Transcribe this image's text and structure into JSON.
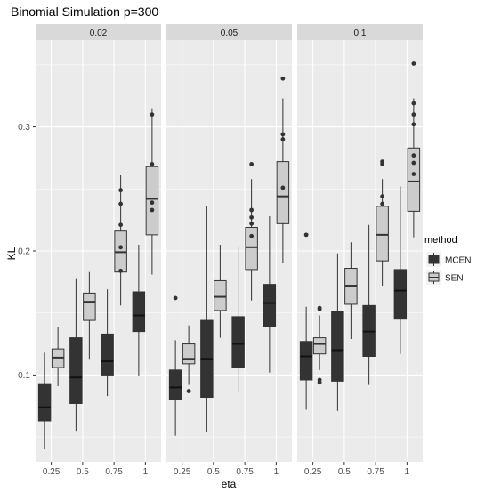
{
  "chart_data": {
    "type": "boxplot",
    "title": "Binomial Simulation p=300",
    "xlabel": "eta",
    "ylabel": "KL",
    "categories": [
      "0.25",
      "0.5",
      "0.75",
      "1"
    ],
    "yticks": [
      {
        "value": 0.1,
        "label": "0.1"
      },
      {
        "value": 0.2,
        "label": "0.2"
      },
      {
        "value": 0.3,
        "label": "0.3"
      }
    ],
    "ylim": [
      0.03,
      0.37
    ],
    "grid": true,
    "legend": {
      "title": "method",
      "position": "right",
      "entries": [
        {
          "label": "MCEN",
          "color": "#333333"
        },
        {
          "label": "SEN",
          "color": "#cccccc"
        }
      ]
    },
    "colors": {
      "panel_bg": "#ebebeb",
      "strip_bg": "#d9d9d9",
      "grid_major": "#ffffff",
      "outline": "#333333",
      "MCEN_fill": "#333333",
      "SEN_fill": "#cccccc"
    },
    "facets": [
      {
        "label": "0.02",
        "series": [
          {
            "name": "MCEN",
            "boxes": [
              {
                "lo": 0.04,
                "q1": 0.063,
                "med": 0.074,
                "q3": 0.093,
                "hi": 0.118,
                "outliers": []
              },
              {
                "lo": 0.055,
                "q1": 0.077,
                "med": 0.098,
                "q3": 0.13,
                "hi": 0.178,
                "outliers": []
              },
              {
                "lo": 0.083,
                "q1": 0.1,
                "med": 0.111,
                "q3": 0.133,
                "hi": 0.169,
                "outliers": []
              },
              {
                "lo": 0.099,
                "q1": 0.135,
                "med": 0.148,
                "q3": 0.167,
                "hi": 0.205,
                "outliers": []
              }
            ]
          },
          {
            "name": "SEN",
            "boxes": [
              {
                "lo": 0.091,
                "q1": 0.106,
                "med": 0.114,
                "q3": 0.121,
                "hi": 0.139,
                "outliers": []
              },
              {
                "lo": 0.113,
                "q1": 0.144,
                "med": 0.159,
                "q3": 0.166,
                "hi": 0.183,
                "outliers": []
              },
              {
                "lo": 0.156,
                "q1": 0.183,
                "med": 0.199,
                "q3": 0.216,
                "hi": 0.261,
                "outliers": [
                  0.184,
                  0.203,
                  0.221,
                  0.238,
                  0.249
                ]
              },
              {
                "lo": 0.181,
                "q1": 0.213,
                "med": 0.242,
                "q3": 0.268,
                "hi": 0.315,
                "outliers": [
                  0.233,
                  0.239,
                  0.27,
                  0.31
                ]
              }
            ]
          }
        ]
      },
      {
        "label": "0.05",
        "series": [
          {
            "name": "MCEN",
            "boxes": [
              {
                "lo": 0.051,
                "q1": 0.08,
                "med": 0.09,
                "q3": 0.104,
                "hi": 0.128,
                "outliers": [
                  0.162
                ]
              },
              {
                "lo": 0.054,
                "q1": 0.082,
                "med": 0.113,
                "q3": 0.144,
                "hi": 0.236,
                "outliers": []
              },
              {
                "lo": 0.086,
                "q1": 0.106,
                "med": 0.125,
                "q3": 0.147,
                "hi": 0.204,
                "outliers": []
              },
              {
                "lo": 0.102,
                "q1": 0.139,
                "med": 0.158,
                "q3": 0.173,
                "hi": 0.228,
                "outliers": []
              }
            ]
          },
          {
            "name": "SEN",
            "boxes": [
              {
                "lo": 0.092,
                "q1": 0.109,
                "med": 0.113,
                "q3": 0.125,
                "hi": 0.14,
                "outliers": [
                  0.087
                ]
              },
              {
                "lo": 0.13,
                "q1": 0.152,
                "med": 0.163,
                "q3": 0.176,
                "hi": 0.205,
                "outliers": []
              },
              {
                "lo": 0.16,
                "q1": 0.185,
                "med": 0.203,
                "q3": 0.219,
                "hi": 0.258,
                "outliers": [
                  0.212,
                  0.222,
                  0.227,
                  0.233,
                  0.27
                ]
              },
              {
                "lo": 0.19,
                "q1": 0.222,
                "med": 0.244,
                "q3": 0.272,
                "hi": 0.323,
                "outliers": [
                  0.251,
                  0.29,
                  0.294,
                  0.339
                ]
              }
            ]
          }
        ]
      },
      {
        "label": "0.1",
        "series": [
          {
            "name": "MCEN",
            "boxes": [
              {
                "lo": 0.072,
                "q1": 0.096,
                "med": 0.115,
                "q3": 0.127,
                "hi": 0.155,
                "outliers": [
                  0.213
                ]
              },
              {
                "lo": 0.071,
                "q1": 0.095,
                "med": 0.12,
                "q3": 0.151,
                "hi": 0.198,
                "outliers": []
              },
              {
                "lo": 0.092,
                "q1": 0.115,
                "med": 0.135,
                "q3": 0.156,
                "hi": 0.221,
                "outliers": []
              },
              {
                "lo": 0.117,
                "q1": 0.145,
                "med": 0.168,
                "q3": 0.185,
                "hi": 0.252,
                "outliers": []
              }
            ]
          },
          {
            "name": "SEN",
            "boxes": [
              {
                "lo": 0.104,
                "q1": 0.117,
                "med": 0.125,
                "q3": 0.13,
                "hi": 0.148,
                "outliers": [
                  0.094,
                  0.096,
                  0.153,
                  0.154
                ]
              },
              {
                "lo": 0.129,
                "q1": 0.157,
                "med": 0.172,
                "q3": 0.186,
                "hi": 0.207,
                "outliers": []
              },
              {
                "lo": 0.172,
                "q1": 0.192,
                "med": 0.213,
                "q3": 0.236,
                "hi": 0.258,
                "outliers": [
                  0.238,
                  0.244,
                  0.27,
                  0.272
                ]
              },
              {
                "lo": 0.211,
                "q1": 0.232,
                "med": 0.256,
                "q3": 0.283,
                "hi": 0.323,
                "outliers": [
                  0.262,
                  0.271,
                  0.277,
                  0.302,
                  0.31,
                  0.319,
                  0.351
                ]
              }
            ]
          }
        ]
      }
    ]
  }
}
